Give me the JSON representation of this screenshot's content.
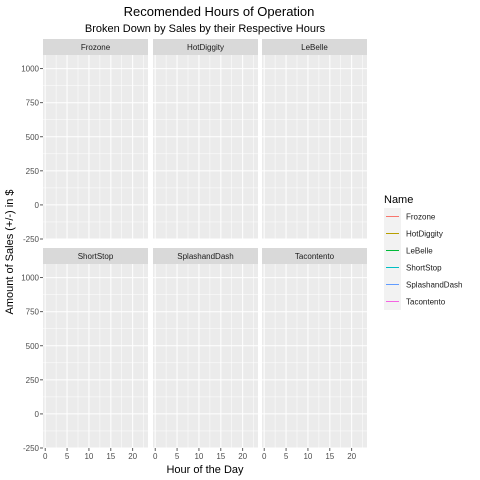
{
  "chart_data": {
    "type": "line",
    "title": "Recomended Hours of Operation",
    "subtitle": "Broken Down by Sales by their Respective Hours",
    "xlabel": "Hour of the Day",
    "ylabel": "Amount of Sales (+/-) in $",
    "xlim": [
      -0.5,
      23.5
    ],
    "ylim": [
      -250,
      1100
    ],
    "x_ticks": [
      0,
      5,
      10,
      15,
      20
    ],
    "y_ticks": [
      -250,
      0,
      250,
      500,
      750,
      1000
    ],
    "grid": true,
    "facet_layout": "2x3",
    "facets": [
      "Frozone",
      "HotDiggity",
      "LeBelle",
      "ShortStop",
      "SplashandDash",
      "Tacontento"
    ],
    "legend": {
      "title": "Name",
      "position": "right",
      "entries": [
        {
          "name": "Frozone",
          "color": "#F8766D"
        },
        {
          "name": "HotDiggity",
          "color": "#B79F00"
        },
        {
          "name": "LeBelle",
          "color": "#00BA38"
        },
        {
          "name": "ShortStop",
          "color": "#00BFC4"
        },
        {
          "name": "SplashandDash",
          "color": "#619CFF"
        },
        {
          "name": "Tacontento",
          "color": "#F564E3"
        }
      ]
    },
    "series": [
      {
        "name": "Frozone",
        "values": []
      },
      {
        "name": "HotDiggity",
        "values": []
      },
      {
        "name": "LeBelle",
        "values": []
      },
      {
        "name": "ShortStop",
        "values": []
      },
      {
        "name": "SplashandDash",
        "values": []
      },
      {
        "name": "Tacontento",
        "values": []
      }
    ],
    "colors": {
      "panel_bg": "#EBEBEB",
      "strip_bg": "#D9D9D9",
      "grid_major": "#FFFFFF",
      "legend_key_bg": "#F2F2F2"
    }
  }
}
